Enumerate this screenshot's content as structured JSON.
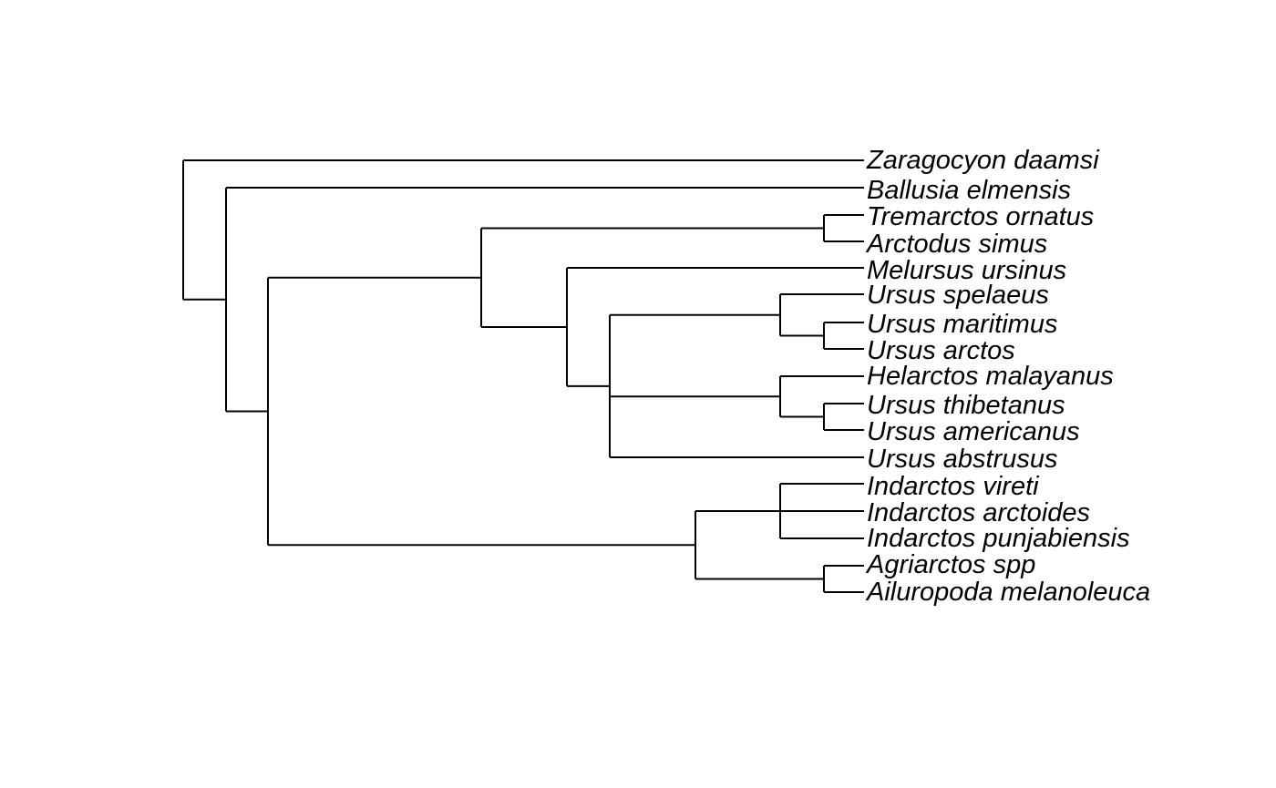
{
  "tree": {
    "line_color": "#000000",
    "tips": [
      {
        "id": "zaragocyon",
        "label": "Zaragocyon daamsi"
      },
      {
        "id": "ballusia",
        "label": "Ballusia elmensis"
      },
      {
        "id": "tremarctos",
        "label": "Tremarctos ornatus"
      },
      {
        "id": "arctodus",
        "label": "Arctodus simus"
      },
      {
        "id": "melursus",
        "label": "Melursus ursinus"
      },
      {
        "id": "spelaeus",
        "label": "Ursus spelaeus"
      },
      {
        "id": "maritimus",
        "label": "Ursus maritimus"
      },
      {
        "id": "arctos",
        "label": "Ursus arctos"
      },
      {
        "id": "helarctos",
        "label": "Helarctos malayanus"
      },
      {
        "id": "thibetanus",
        "label": "Ursus thibetanus"
      },
      {
        "id": "americanus",
        "label": "Ursus americanus"
      },
      {
        "id": "abstrusus",
        "label": "Ursus abstrusus"
      },
      {
        "id": "vireti",
        "label": "Indarctos vireti"
      },
      {
        "id": "arctoides",
        "label": "Indarctos arctoides"
      },
      {
        "id": "punjabiensis",
        "label": "Indarctos punjabiensis"
      },
      {
        "id": "agriarctos",
        "label": "Agriarctos spp"
      },
      {
        "id": "ailuropoda",
        "label": "Ailuropoda melanoleuca"
      }
    ],
    "topology": {
      "id": "root",
      "children": [
        {
          "tip": "zaragocyon"
        },
        {
          "id": "n1",
          "children": [
            {
              "tip": "ballusia"
            },
            {
              "id": "n2",
              "children": [
                {
                  "id": "n3",
                  "children": [
                    {
                      "id": "n4",
                      "children": [
                        {
                          "tip": "tremarctos"
                        },
                        {
                          "tip": "arctodus"
                        }
                      ]
                    },
                    {
                      "id": "n5",
                      "children": [
                        {
                          "tip": "melursus"
                        },
                        {
                          "id": "n6",
                          "children": [
                            {
                              "id": "n7",
                              "children": [
                                {
                                  "tip": "spelaeus"
                                },
                                {
                                  "id": "n8",
                                  "children": [
                                    {
                                      "tip": "maritimus"
                                    },
                                    {
                                      "tip": "arctos"
                                    }
                                  ]
                                }
                              ]
                            },
                            {
                              "id": "n9",
                              "children": [
                                {
                                  "tip": "helarctos"
                                },
                                {
                                  "id": "n10",
                                  "children": [
                                    {
                                      "tip": "thibetanus"
                                    },
                                    {
                                      "tip": "americanus"
                                    }
                                  ]
                                }
                              ]
                            },
                            {
                              "tip": "abstrusus"
                            }
                          ]
                        }
                      ]
                    }
                  ]
                },
                {
                  "id": "n11",
                  "children": [
                    {
                      "id": "n12",
                      "children": [
                        {
                          "tip": "vireti"
                        },
                        {
                          "tip": "arctoides"
                        },
                        {
                          "tip": "punjabiensis"
                        }
                      ]
                    },
                    {
                      "id": "n13",
                      "children": [
                        {
                          "tip": "agriarctos"
                        },
                        {
                          "tip": "ailuropoda"
                        }
                      ]
                    }
                  ]
                }
              ]
            }
          ]
        }
      ]
    }
  }
}
